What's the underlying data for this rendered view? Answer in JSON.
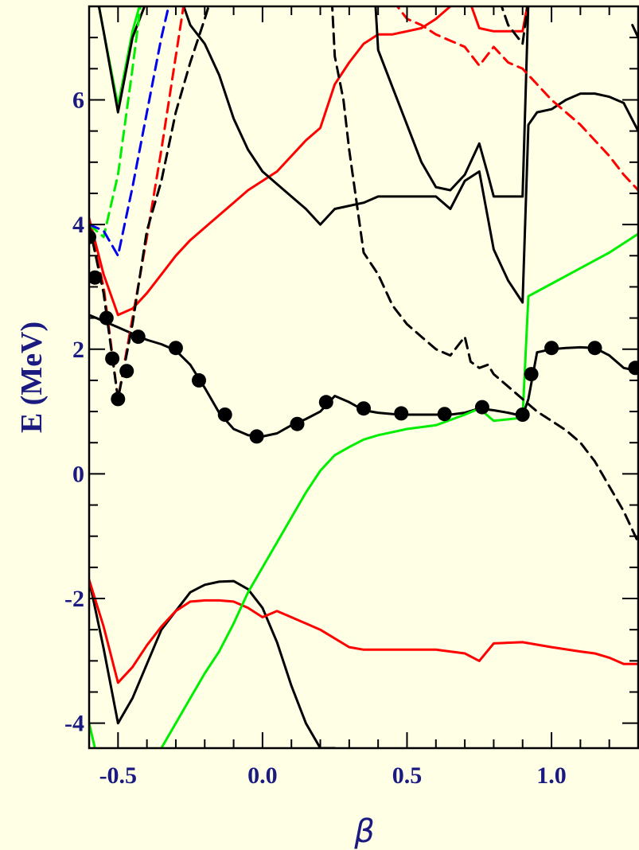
{
  "chart_data": {
    "type": "line",
    "xlabel": "β",
    "ylabel": "E (MeV)",
    "xlim": [
      -0.6,
      1.3
    ],
    "ylim": [
      -4.4,
      7.5
    ],
    "x_ticks": [
      {
        "value": -0.5,
        "label": "-0.5"
      },
      {
        "value": 0.0,
        "label": "0.0"
      },
      {
        "value": 0.5,
        "label": "0.5"
      },
      {
        "value": 1.0,
        "label": "1.0"
      }
    ],
    "y_ticks": [
      {
        "value": -4,
        "label": "-4"
      },
      {
        "value": -2,
        "label": "-2"
      },
      {
        "value": 0,
        "label": "0"
      },
      {
        "value": 2,
        "label": "2"
      },
      {
        "value": 4,
        "label": "4"
      },
      {
        "value": 6,
        "label": "6"
      }
    ],
    "x_minor_step": 0.1,
    "y_minor_step": 0.5,
    "grid": false,
    "series": [
      {
        "color": "#000000",
        "dash": false,
        "x": [
          -0.6,
          -0.55,
          -0.5,
          -0.45,
          -0.4,
          -0.35,
          -0.3,
          -0.25,
          -0.2,
          -0.15,
          -0.1,
          -0.05,
          0.0,
          0.05,
          0.1,
          0.15,
          0.2,
          0.25,
          0.3,
          0.35,
          0.4,
          0.45,
          0.5,
          0.55,
          0.6,
          0.65,
          0.7,
          0.75,
          0.8,
          0.85,
          0.9,
          0.92,
          0.95,
          1.0,
          1.05,
          1.1,
          1.15,
          1.2,
          1.25,
          1.3
        ],
        "y": [
          2.55,
          2.45,
          2.35,
          2.25,
          2.15,
          2.08,
          1.98,
          1.75,
          1.38,
          0.98,
          0.72,
          0.62,
          0.6,
          0.65,
          0.78,
          0.88,
          1.0,
          1.25,
          1.15,
          1.02,
          0.98,
          0.96,
          0.95,
          0.95,
          0.95,
          0.95,
          0.98,
          1.05,
          1.02,
          0.98,
          0.93,
          1.2,
          1.95,
          2.0,
          2.02,
          2.03,
          2.02,
          1.9,
          1.7,
          1.65
        ]
      },
      {
        "color": "#000000",
        "dash": false,
        "x": [
          -0.6,
          -0.55,
          -0.5,
          -0.45,
          -0.4,
          -0.35,
          -0.3,
          -0.25,
          -0.2,
          -0.15,
          -0.1,
          -0.05,
          0.0,
          0.05,
          0.1,
          0.15,
          0.2,
          0.25
        ],
        "y": [
          -1.7,
          -2.8,
          -4.0,
          -3.6,
          -3.05,
          -2.5,
          -2.2,
          -1.9,
          -1.78,
          -1.73,
          -1.72,
          -1.85,
          -2.15,
          -2.7,
          -3.4,
          -4.0,
          -4.4,
          -4.4
        ]
      },
      {
        "color": "#ff0000",
        "dash": false,
        "x": [
          -0.6,
          -0.55,
          -0.5,
          -0.45,
          -0.4,
          -0.35,
          -0.3,
          -0.25,
          -0.2,
          -0.15,
          -0.1,
          -0.05,
          0.0,
          0.05,
          0.1,
          0.2,
          0.3,
          0.35,
          0.4,
          0.5,
          0.6,
          0.7,
          0.75,
          0.8,
          0.9,
          1.0,
          1.1,
          1.15,
          1.2,
          1.25,
          1.3
        ],
        "y": [
          -1.7,
          -2.45,
          -3.35,
          -3.1,
          -2.75,
          -2.45,
          -2.2,
          -2.05,
          -2.03,
          -2.03,
          -2.05,
          -2.15,
          -2.3,
          -2.2,
          -2.3,
          -2.5,
          -2.78,
          -2.82,
          -2.82,
          -2.82,
          -2.82,
          -2.88,
          -3.0,
          -2.72,
          -2.7,
          -2.78,
          -2.85,
          -2.88,
          -2.95,
          -3.05,
          -3.05
        ]
      },
      {
        "color": "#00ee00",
        "dash": false,
        "x": [
          -0.6,
          -0.55,
          -0.4,
          -0.35,
          -0.3,
          -0.25,
          -0.2,
          -0.15,
          -0.1,
          -0.05,
          0.0,
          0.05,
          0.1,
          0.15,
          0.2,
          0.25,
          0.3,
          0.35,
          0.4,
          0.5,
          0.6,
          0.7,
          0.75,
          0.8,
          0.9,
          0.92,
          1.0,
          1.1,
          1.2,
          1.3
        ],
        "y": [
          -4.0,
          -5.0,
          -5.0,
          -4.4,
          -4.0,
          -3.6,
          -3.2,
          -2.85,
          -2.4,
          -1.9,
          -1.5,
          -1.1,
          -0.7,
          -0.3,
          0.05,
          0.3,
          0.43,
          0.55,
          0.62,
          0.72,
          0.78,
          0.95,
          1.05,
          0.85,
          0.9,
          2.85,
          3.05,
          3.3,
          3.55,
          3.85
        ]
      },
      {
        "color": "#ff0000",
        "dash": false,
        "x": [
          -0.6,
          -0.55,
          -0.5,
          -0.45,
          -0.4,
          -0.35,
          -0.3,
          -0.25,
          -0.2,
          -0.15,
          -0.1,
          -0.05,
          0.0,
          0.05,
          0.1,
          0.15,
          0.2,
          0.25,
          0.3,
          0.35,
          0.4,
          0.45,
          0.5,
          0.55,
          0.6,
          0.65,
          0.7,
          0.75,
          0.8,
          0.85,
          0.9,
          0.92
        ],
        "y": [
          4.1,
          3.2,
          2.55,
          2.65,
          2.9,
          3.2,
          3.5,
          3.75,
          3.95,
          4.15,
          4.35,
          4.55,
          4.7,
          4.85,
          5.1,
          5.35,
          5.55,
          6.25,
          6.6,
          6.9,
          7.05,
          7.05,
          7.1,
          7.15,
          7.3,
          7.5,
          7.8,
          7.15,
          7.1,
          7.1,
          7.1,
          7.6
        ]
      },
      {
        "color": "#000000",
        "dash": false,
        "x": [
          -0.28,
          -0.25,
          -0.2,
          -0.15,
          -0.1,
          -0.05,
          0.0,
          0.05,
          0.1,
          0.15,
          0.2,
          0.25,
          0.3,
          0.35,
          0.4,
          0.45,
          0.5,
          0.55,
          0.6,
          0.65,
          0.7,
          0.75,
          0.8,
          0.85,
          0.9,
          0.92,
          0.95,
          1.0,
          1.05,
          1.1,
          1.15,
          1.2,
          1.25,
          1.3
        ],
        "y": [
          7.6,
          7.2,
          6.9,
          6.4,
          5.7,
          5.2,
          4.85,
          4.65,
          4.45,
          4.25,
          4.0,
          4.25,
          4.3,
          4.35,
          4.45,
          4.45,
          4.45,
          4.45,
          4.45,
          4.25,
          4.7,
          4.85,
          3.6,
          3.1,
          2.75,
          5.6,
          5.8,
          5.85,
          6.0,
          6.1,
          6.1,
          6.05,
          5.95,
          5.5
        ]
      },
      {
        "color": "#000000",
        "dash": false,
        "x": [
          0.39,
          0.4,
          0.45,
          0.5,
          0.55,
          0.6,
          0.65,
          0.7,
          0.75,
          0.78,
          0.8,
          0.85,
          0.9,
          0.92
        ],
        "y": [
          7.6,
          6.8,
          6.2,
          5.6,
          5.0,
          4.6,
          4.55,
          4.8,
          5.3,
          4.8,
          4.45,
          4.45,
          4.45,
          7.6
        ]
      },
      {
        "color": "#00ee00",
        "dash": false,
        "x": [
          -0.57,
          -0.55,
          -0.5,
          -0.45,
          -0.42
        ],
        "y": [
          7.6,
          7.1,
          5.9,
          7.1,
          7.6
        ]
      },
      {
        "color": "#000000",
        "dash": false,
        "x": [
          -0.57,
          -0.55,
          -0.5,
          -0.45,
          -0.4
        ],
        "y": [
          7.6,
          7.1,
          5.8,
          7.0,
          7.6
        ]
      },
      {
        "color": "#000000",
        "dash": false,
        "x": [
          1.28,
          1.3
        ],
        "y": [
          7.2,
          7.0
        ]
      },
      {
        "color": "#00ee00",
        "dash": true,
        "x": [
          -0.6,
          -0.55,
          -0.5,
          -0.45,
          -0.42
        ],
        "y": [
          4.0,
          3.8,
          4.8,
          6.5,
          7.6
        ]
      },
      {
        "color": "#0000ee",
        "dash": true,
        "x": [
          -0.6,
          -0.55,
          -0.5,
          -0.45,
          -0.4,
          -0.35,
          -0.32
        ],
        "y": [
          4.0,
          3.9,
          3.5,
          4.6,
          5.8,
          7.0,
          7.6
        ]
      },
      {
        "color": "#ff0000",
        "dash": true,
        "x": [
          -0.6,
          -0.55,
          -0.5,
          -0.45,
          -0.4,
          -0.35,
          -0.3,
          -0.27
        ],
        "y": [
          4.0,
          3.0,
          1.2,
          2.5,
          3.8,
          5.2,
          6.7,
          7.6
        ]
      },
      {
        "color": "#000000",
        "dash": true,
        "x": [
          -0.6,
          -0.55,
          -0.5,
          -0.45,
          -0.4,
          -0.35,
          -0.3,
          -0.25,
          -0.2,
          -0.18
        ],
        "y": [
          4.0,
          2.9,
          1.2,
          2.4,
          3.9,
          4.7,
          5.8,
          6.6,
          7.3,
          7.6
        ]
      },
      {
        "color": "#000000",
        "dash": true,
        "x": [
          0.24,
          0.25,
          0.28,
          0.3,
          0.35,
          0.4,
          0.45,
          0.5,
          0.55,
          0.6,
          0.65,
          0.7,
          0.72,
          0.75,
          0.78,
          0.8,
          0.85,
          0.9,
          0.95,
          1.0,
          1.05,
          1.1,
          1.15,
          1.2,
          1.25,
          1.3
        ],
        "y": [
          7.6,
          6.7,
          6.0,
          5.2,
          3.55,
          3.2,
          2.7,
          2.4,
          2.2,
          2.0,
          1.9,
          2.2,
          1.8,
          1.7,
          1.75,
          1.6,
          1.4,
          1.2,
          1.0,
          0.85,
          0.7,
          0.5,
          0.2,
          -0.2,
          -0.6,
          -1.1
        ]
      },
      {
        "color": "#ff0000",
        "dash": true,
        "x": [
          0.45,
          0.5,
          0.55,
          0.6,
          0.65,
          0.7,
          0.75,
          0.8,
          0.85,
          0.9,
          0.95,
          1.0,
          1.05,
          1.1,
          1.15,
          1.2,
          1.25,
          1.3
        ],
        "y": [
          7.6,
          7.3,
          7.2,
          7.05,
          6.95,
          6.85,
          6.55,
          6.85,
          6.6,
          6.5,
          6.25,
          6.0,
          5.8,
          5.6,
          5.35,
          5.1,
          4.8,
          4.55
        ]
      },
      {
        "color": "#000000",
        "dash": true,
        "x": [
          0.82,
          0.85,
          0.9,
          0.92
        ],
        "y": [
          7.6,
          7.2,
          6.9,
          7.6
        ]
      }
    ],
    "points": {
      "color": "#000000",
      "x": [
        -0.6,
        -0.58,
        -0.54,
        -0.52,
        -0.5,
        -0.47,
        -0.43,
        -0.3,
        -0.22,
        -0.13,
        -0.02,
        0.12,
        0.22,
        0.35,
        0.48,
        0.63,
        0.76,
        0.9,
        0.93,
        1.0,
        1.15,
        1.29
      ],
      "y": [
        3.8,
        3.15,
        2.5,
        1.85,
        1.2,
        1.65,
        2.2,
        2.02,
        1.5,
        0.95,
        0.6,
        0.8,
        1.15,
        1.05,
        0.97,
        0.96,
        1.07,
        0.95,
        1.6,
        2.02,
        2.02,
        1.7
      ]
    }
  }
}
